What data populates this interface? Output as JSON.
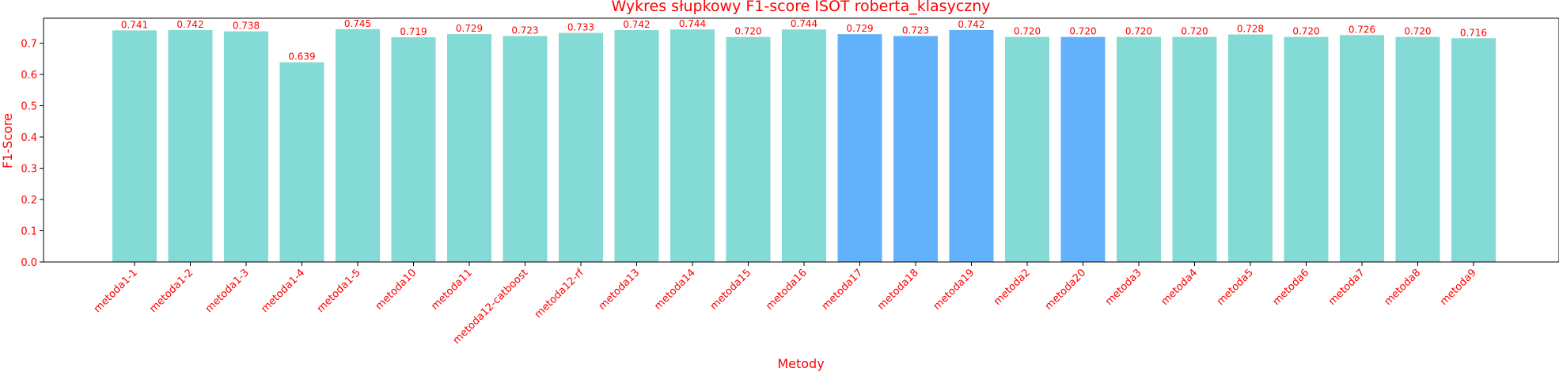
{
  "chart_data": {
    "type": "bar",
    "title": "Wykres słupkowy F1-score ISOT roberta_klasyczny",
    "xlabel": "Metody",
    "ylabel": "F1-Score",
    "ylim": [
      0,
      0.78
    ],
    "yticks": [
      "0.0",
      "0.1",
      "0.2",
      "0.3",
      "0.4",
      "0.5",
      "0.6",
      "0.7"
    ],
    "categories": [
      "metoda1-1",
      "metoda1-2",
      "metoda1-3",
      "metoda1-4",
      "metoda1-5",
      "metoda10",
      "metoda11",
      "metoda12-catboost",
      "metoda12-rf",
      "metoda13",
      "metoda14",
      "metoda15",
      "metoda16",
      "metoda17",
      "metoda18",
      "metoda19",
      "metoda2",
      "metoda20",
      "metoda3",
      "metoda4",
      "metoda5",
      "metoda6",
      "metoda7",
      "metoda8",
      "metoda9"
    ],
    "values": [
      0.741,
      0.742,
      0.738,
      0.639,
      0.745,
      0.719,
      0.729,
      0.723,
      0.733,
      0.742,
      0.744,
      0.72,
      0.744,
      0.729,
      0.723,
      0.742,
      0.72,
      0.72,
      0.72,
      0.72,
      0.728,
      0.72,
      0.726,
      0.72,
      0.716
    ],
    "value_labels": [
      "0.741",
      "0.742",
      "0.738",
      "0.639",
      "0.745",
      "0.719",
      "0.729",
      "0.723",
      "0.733",
      "0.742",
      "0.744",
      "0.720",
      "0.744",
      "0.729",
      "0.723",
      "0.742",
      "0.720",
      "0.720",
      "0.720",
      "0.720",
      "0.728",
      "0.720",
      "0.726",
      "0.720",
      "0.716"
    ],
    "highlighted": [
      "metoda17",
      "metoda18",
      "metoda19",
      "metoda20"
    ],
    "grid": false,
    "colors": {
      "bar": "#84dad5",
      "highlight": "#62b2fb",
      "text": "#ff0000",
      "axis": "#000000"
    }
  }
}
